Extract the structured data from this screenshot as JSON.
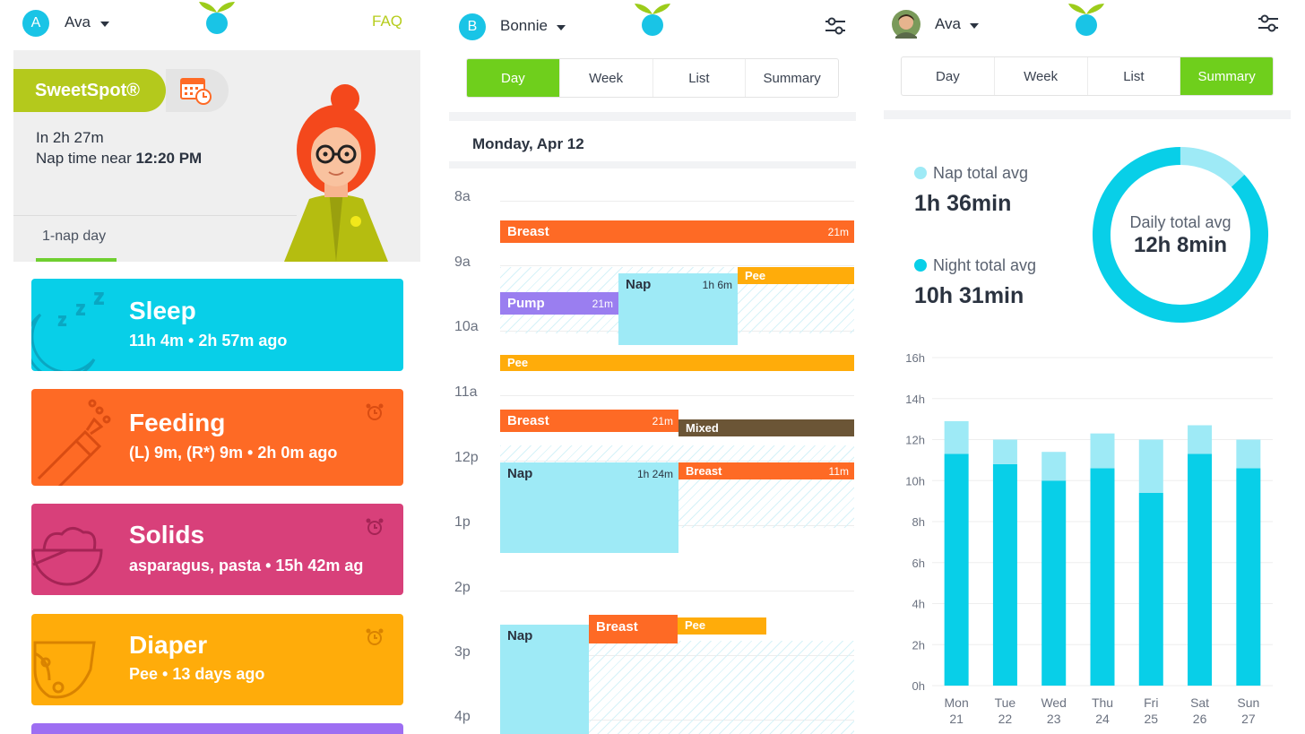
{
  "panel1": {
    "user_initial": "A",
    "user_name": "Ava",
    "faq_label": "FAQ",
    "sweetspot": {
      "label": "SweetSpot®",
      "line1": "In 2h 27m",
      "line2_prefix": "Nap time near ",
      "line2_time": "12:20 PM",
      "nap_day": "1-nap day"
    },
    "activities": [
      {
        "title": "Sleep",
        "subtitle": "11h 4m  •  2h 57m ago",
        "color": "#08cfe8",
        "icon": "moon-zzz-icon"
      },
      {
        "title": "Feeding",
        "subtitle": "(L) 9m, (R*) 9m  •  2h 0m ago",
        "color": "#fe6a25",
        "icon": "bottle-icon"
      },
      {
        "title": "Solids",
        "subtitle": "asparagus, pasta  •  15h 42m ag",
        "color": "#d8407a",
        "icon": "bowl-icon"
      },
      {
        "title": "Diaper",
        "subtitle": "Pee  •  13 days ago",
        "color": "#ffac0a",
        "icon": "diaper-icon"
      }
    ],
    "colors": {
      "accent_green": "#b4c91c",
      "purple_card": "#9d6ef2"
    }
  },
  "panel2": {
    "user_initial": "B",
    "user_name": "Bonnie",
    "tabs": [
      "Day",
      "Week",
      "List",
      "Summary"
    ],
    "active_tab": "Day",
    "date": "Monday, Apr 12",
    "hours": [
      "8a",
      "9a",
      "10a",
      "11a",
      "12p",
      "1p",
      "2p",
      "3p",
      "4p"
    ],
    "events": [
      {
        "label": "Breast",
        "duration": "21m",
        "type": "breast"
      },
      {
        "label": "Pump",
        "duration": "21m",
        "type": "pump"
      },
      {
        "label": "Nap",
        "duration": "1h 6m",
        "type": "nap"
      },
      {
        "label": "Pee",
        "duration": "",
        "type": "pee"
      },
      {
        "label": "Pee",
        "duration": "",
        "type": "pee"
      },
      {
        "label": "Breast",
        "duration": "21m",
        "type": "breast"
      },
      {
        "label": "Mixed",
        "duration": "",
        "type": "mixed"
      },
      {
        "label": "Nap",
        "duration": "1h 24m",
        "type": "nap"
      },
      {
        "label": "Breast",
        "duration": "11m",
        "type": "breast"
      },
      {
        "label": "Nap",
        "duration": "",
        "type": "nap"
      },
      {
        "label": "Breast",
        "duration": "",
        "type": "breast"
      },
      {
        "label": "Pee",
        "duration": "",
        "type": "pee"
      }
    ],
    "colors": {
      "breast": "#fe6a25",
      "pump": "#9a7ef0",
      "nap": "#9eeaf6",
      "pee": "#ffac0a",
      "mixed": "#6b5536",
      "active_tab": "#6fcf1c"
    }
  },
  "panel3": {
    "user_name": "Ava",
    "tabs": [
      "Day",
      "Week",
      "List",
      "Summary"
    ],
    "active_tab": "Summary",
    "nap_label": "Nap total avg",
    "nap_value": "1h 36min",
    "night_label": "Night total avg",
    "night_value": "10h 31min",
    "daily_label": "Daily total avg",
    "daily_value": "12h 8min",
    "donut_nap_fraction": 0.13
  },
  "chart_data": {
    "type": "bar",
    "stacked": true,
    "categories": [
      "Mon 21",
      "Tue 22",
      "Wed 23",
      "Thu 24",
      "Fri 25",
      "Sat 26",
      "Sun 27"
    ],
    "category_top": [
      "Mon",
      "Tue",
      "Wed",
      "Thu",
      "Fri",
      "Sat",
      "Sun"
    ],
    "category_bottom": [
      "21",
      "22",
      "23",
      "24",
      "25",
      "26",
      "27"
    ],
    "series": [
      {
        "values": [
          11.3,
          10.8,
          10.0,
          10.6,
          9.4,
          11.3,
          10.6
        ],
        "color": "#08cfe8"
      },
      {
        "values": [
          1.6,
          1.2,
          1.4,
          1.7,
          2.6,
          1.4,
          1.4
        ],
        "color": "#9eeaf6"
      }
    ],
    "yticks": [
      "0h",
      "2h",
      "4h",
      "6h",
      "8h",
      "10h",
      "12h",
      "14h",
      "16h"
    ],
    "ylim": [
      0,
      16
    ],
    "grid": true
  }
}
